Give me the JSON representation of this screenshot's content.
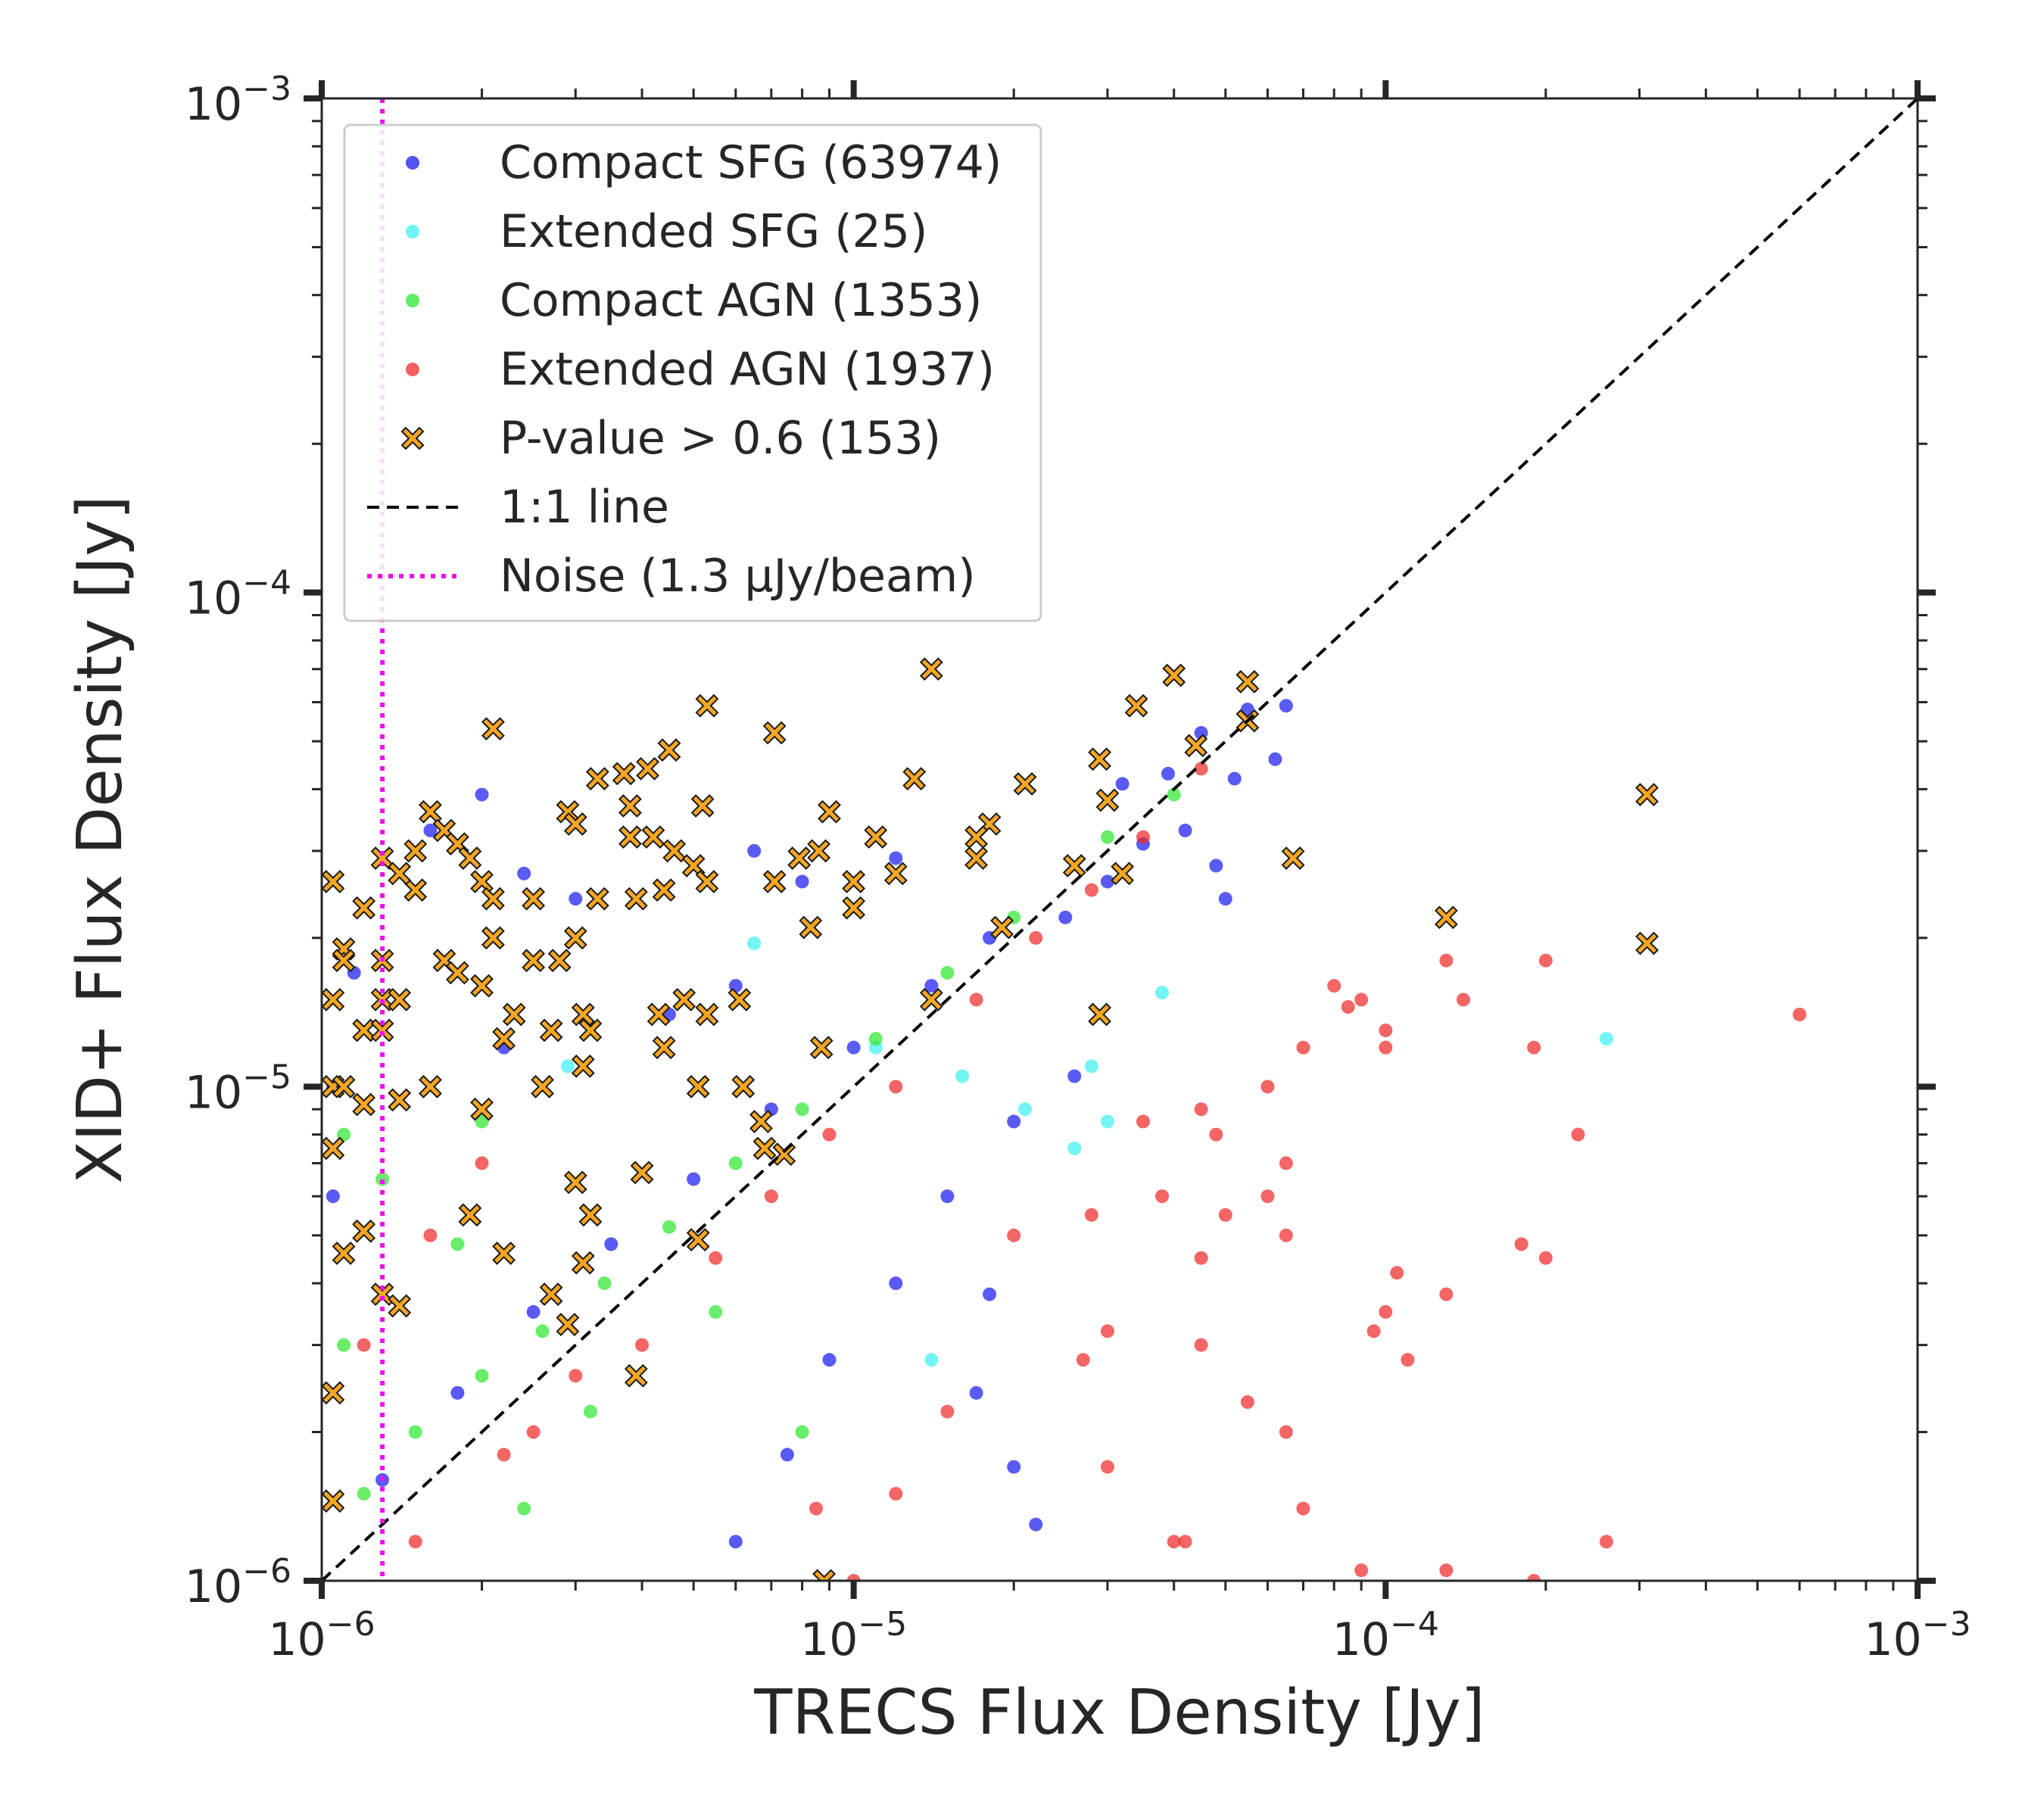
{
  "chart_data": {
    "type": "scatter",
    "xscale": "log",
    "yscale": "log",
    "xlabel": "TRECS Flux Density [Jy]",
    "ylabel": "XID+ Flux Density [Jy]",
    "xlim": [
      1e-06,
      0.001
    ],
    "ylim": [
      1e-06,
      0.001
    ],
    "x_tick_labels": [
      {
        "value": 1e-06,
        "base": "10",
        "exp": "−6"
      },
      {
        "value": 1e-05,
        "base": "10",
        "exp": "−5"
      },
      {
        "value": 0.0001,
        "base": "10",
        "exp": "−4"
      },
      {
        "value": 0.001,
        "base": "10",
        "exp": "−3"
      }
    ],
    "y_tick_labels": [
      {
        "value": 1e-06,
        "base": "10",
        "exp": "−6"
      },
      {
        "value": 1e-05,
        "base": "10",
        "exp": "−5"
      },
      {
        "value": 0.0001,
        "base": "10",
        "exp": "−4"
      },
      {
        "value": 0.001,
        "base": "10",
        "exp": "−3"
      }
    ],
    "legend_position": "top-left",
    "legend": [
      {
        "label": "Compact SFG (63974)",
        "marker": "dot",
        "color": "#1a1af0"
      },
      {
        "label": "Extended SFG (25)",
        "marker": "dot",
        "color": "#3ef0f0"
      },
      {
        "label": "Compact AGN (1353)",
        "marker": "dot",
        "color": "#2ee82e"
      },
      {
        "label": "Extended AGN (1937)",
        "marker": "dot",
        "color": "#f02a2a"
      },
      {
        "label": "P-value > 0.6 (153)",
        "marker": "x",
        "color": "#f5a623"
      },
      {
        "label": "1:1 line",
        "marker": "dashed",
        "color": "#000000"
      },
      {
        "label": "Noise (1.3 μJy/beam)",
        "marker": "dotted",
        "color": "#ee11ee"
      }
    ],
    "reference_lines": {
      "one_to_one": {
        "from": [
          1e-06,
          1e-06
        ],
        "to": [
          0.001,
          0.001
        ],
        "color": "#000000"
      },
      "noise": {
        "x": 1.3e-06,
        "color": "#ee11ee"
      }
    },
    "series": [
      {
        "name": "Compact SFG",
        "color": "#1a1af0",
        "note": "dense cloud from 1e-6 to ~7e-5 Jy along the 1:1 line, scatter above toward low TRECS flux",
        "points": [
          [
            4.5e-05,
            5.2e-05
          ],
          [
            5.5e-05,
            5.8e-05
          ],
          [
            6.5e-05,
            5.9e-05
          ],
          [
            6.2e-05,
            4.6e-05
          ],
          [
            5.2e-05,
            4.2e-05
          ],
          [
            4.2e-05,
            3.3e-05
          ],
          [
            3.5e-05,
            3.1e-05
          ],
          [
            3e-05,
            2.6e-05
          ],
          [
            2.5e-05,
            2.2e-05
          ],
          [
            5e-05,
            2.4e-05
          ],
          [
            4.8e-05,
            2.8e-05
          ],
          [
            2e-06,
            3.9e-05
          ],
          [
            1.6e-06,
            3.3e-05
          ],
          [
            2.4e-06,
            2.7e-05
          ],
          [
            3e-06,
            2.4e-05
          ],
          [
            6.5e-06,
            3e-05
          ],
          [
            8e-06,
            2.6e-05
          ],
          [
            1.2e-05,
            2.9e-05
          ],
          [
            1.8e-05,
            2e-05
          ],
          [
            1.4e-05,
            1.6e-05
          ],
          [
            1e-05,
            1.2e-05
          ],
          [
            7e-06,
            9e-06
          ],
          [
            5e-06,
            6.5e-06
          ],
          [
            3.5e-06,
            4.8e-06
          ],
          [
            2.5e-06,
            3.5e-06
          ],
          [
            1.8e-06,
            2.4e-06
          ],
          [
            1.3e-06,
            1.6e-06
          ],
          [
            2.2e-06,
            1.2e-05
          ],
          [
            4.5e-06,
            1.4e-05
          ],
          [
            6e-06,
            1.6e-05
          ],
          [
            1.5e-05,
            6e-06
          ],
          [
            1.2e-05,
            4e-06
          ],
          [
            9e-06,
            2.8e-06
          ],
          [
            7.5e-06,
            1.8e-06
          ],
          [
            6e-06,
            1.2e-06
          ],
          [
            1.8e-05,
            3.8e-06
          ],
          [
            2.2e-05,
            1.3e-06
          ],
          [
            1.7e-05,
            2.4e-06
          ],
          [
            2e-05,
            1.7e-06
          ],
          [
            2e-05,
            8.5e-06
          ],
          [
            2.6e-05,
            1.05e-05
          ],
          [
            1.05e-06,
            1e-05
          ],
          [
            1.05e-06,
            6e-06
          ],
          [
            1.15e-06,
            1.7e-05
          ],
          [
            3.2e-05,
            4.1e-05
          ],
          [
            3.9e-05,
            4.3e-05
          ]
        ]
      },
      {
        "name": "Extended SFG",
        "color": "#3ef0f0",
        "points": [
          [
            0.00026,
            1.25e-05
          ],
          [
            3.8e-05,
            1.55e-05
          ],
          [
            2.8e-05,
            1.1e-05
          ],
          [
            3e-05,
            8.5e-06
          ],
          [
            2.1e-05,
            9e-06
          ],
          [
            2.6e-05,
            7.5e-06
          ],
          [
            1.4e-05,
            2.8e-06
          ],
          [
            6.5e-06,
            1.95e-05
          ],
          [
            2.9e-06,
            1.1e-05
          ],
          [
            1.1e-05,
            1.2e-05
          ],
          [
            1.6e-05,
            1.05e-05
          ]
        ]
      },
      {
        "name": "Compact AGN",
        "color": "#2ee82e",
        "points": [
          [
            1.2e-06,
            1.5e-06
          ],
          [
            1.5e-06,
            2e-06
          ],
          [
            2e-06,
            2.6e-06
          ],
          [
            2.6e-06,
            3.2e-06
          ],
          [
            3.4e-06,
            4e-06
          ],
          [
            4.5e-06,
            5.2e-06
          ],
          [
            6e-06,
            7e-06
          ],
          [
            8e-06,
            9e-06
          ],
          [
            1.1e-05,
            1.25e-05
          ],
          [
            1.5e-05,
            1.7e-05
          ],
          [
            2e-05,
            2.2e-05
          ],
          [
            3e-05,
            3.2e-05
          ],
          [
            4e-05,
            3.9e-05
          ],
          [
            1.3e-06,
            6.5e-06
          ],
          [
            1.8e-06,
            4.8e-06
          ],
          [
            2.4e-06,
            1.4e-06
          ],
          [
            3.2e-06,
            2.2e-06
          ],
          [
            1.1e-06,
            3e-06
          ],
          [
            5.5e-06,
            3.5e-06
          ],
          [
            8e-06,
            2e-06
          ],
          [
            1.1e-06,
            8e-06
          ],
          [
            2e-06,
            8.5e-06
          ]
        ]
      },
      {
        "name": "Extended AGN",
        "color": "#f02a2a",
        "points": [
          [
            0.0006,
            1.4e-05
          ],
          [
            0.0002,
            1.8e-05
          ],
          [
            0.00014,
            1.5e-05
          ],
          [
            0.00013,
            1.8e-05
          ],
          [
            0.00019,
            1.2e-05
          ],
          [
            0.00023,
            8e-06
          ],
          [
            0.00018,
            4.8e-06
          ],
          [
            0.0002,
            4.5e-06
          ],
          [
            0.000105,
            4.2e-06
          ],
          [
            0.0001,
            3.5e-06
          ],
          [
            9.5e-05,
            3.2e-06
          ],
          [
            0.00011,
            2.8e-06
          ],
          [
            0.00013,
            3.8e-06
          ],
          [
            0.0001,
            1.2e-05
          ],
          [
            0.0001,
            1.3e-05
          ],
          [
            9e-05,
            1.5e-05
          ],
          [
            7e-05,
            1.2e-05
          ],
          [
            6e-05,
            1e-05
          ],
          [
            8e-05,
            1.6e-05
          ],
          [
            8.5e-05,
            1.45e-05
          ],
          [
            7e-05,
            1.4e-06
          ],
          [
            6.5e-05,
            2e-06
          ],
          [
            5.5e-05,
            2.3e-06
          ],
          [
            0.00026,
            1.2e-06
          ],
          [
            0.00019,
            1e-06
          ],
          [
            0.00013,
            1.05e-06
          ],
          [
            9e-05,
            1.05e-06
          ],
          [
            6.5e-05,
            5e-06
          ],
          [
            6e-05,
            6e-06
          ],
          [
            6.5e-05,
            7e-06
          ],
          [
            4.2e-05,
            1.2e-06
          ],
          [
            4e-05,
            1.2e-06
          ],
          [
            3e-05,
            1.7e-06
          ],
          [
            2.7e-05,
            2.8e-06
          ],
          [
            3e-05,
            3.2e-06
          ],
          [
            4.5e-05,
            3e-06
          ],
          [
            4.5e-05,
            4.5e-06
          ],
          [
            5e-05,
            5.5e-06
          ],
          [
            4.8e-05,
            8e-06
          ],
          [
            4.5e-05,
            9e-06
          ],
          [
            3.8e-05,
            6e-06
          ],
          [
            3.5e-05,
            8.5e-06
          ],
          [
            2.8e-05,
            5.5e-06
          ],
          [
            2e-05,
            5e-06
          ],
          [
            1.5e-05,
            2.2e-06
          ],
          [
            1.2e-05,
            1.5e-06
          ],
          [
            1e-05,
            1e-06
          ],
          [
            8.5e-06,
            1.4e-06
          ],
          [
            2.5e-06,
            2e-06
          ],
          [
            1.5e-06,
            1.2e-06
          ],
          [
            2.2e-06,
            1.8e-06
          ],
          [
            3e-06,
            2.6e-06
          ],
          [
            4e-06,
            3e-06
          ],
          [
            5.5e-06,
            4.5e-06
          ],
          [
            7e-06,
            6e-06
          ],
          [
            9e-06,
            8e-06
          ],
          [
            1.2e-05,
            1e-05
          ],
          [
            1.7e-05,
            1.5e-05
          ],
          [
            2.2e-05,
            2e-05
          ],
          [
            2.8e-05,
            2.5e-05
          ],
          [
            3.5e-05,
            3.2e-05
          ],
          [
            4.5e-05,
            4.4e-05
          ],
          [
            1.2e-06,
            3e-06
          ],
          [
            1.6e-06,
            5e-06
          ],
          [
            2e-06,
            7e-06
          ]
        ]
      },
      {
        "name": "P-value > 0.6",
        "color": "#f5a623",
        "points": [
          [
            0.00031,
            3.9e-05
          ],
          [
            0.00031,
            1.95e-05
          ],
          [
            0.00013,
            2.2e-05
          ],
          [
            6.7e-05,
            2.9e-05
          ],
          [
            1.4e-05,
            7e-05
          ],
          [
            4e-05,
            6.8e-05
          ],
          [
            5.5e-05,
            6.6e-05
          ],
          [
            5.5e-05,
            5.5e-05
          ],
          [
            3.4e-05,
            5.9e-05
          ],
          [
            4.4e-05,
            4.9e-05
          ],
          [
            2.9e-05,
            4.6e-05
          ],
          [
            2.1e-05,
            4.1e-05
          ],
          [
            1.3e-05,
            4.2e-05
          ],
          [
            3e-05,
            3.8e-05
          ],
          [
            5.3e-06,
            5.9e-05
          ],
          [
            7.1e-06,
            5.2e-05
          ],
          [
            2.1e-06,
            5.3e-05
          ],
          [
            4.5e-06,
            4.8e-05
          ],
          [
            4.1e-06,
            4.4e-05
          ],
          [
            3.7e-06,
            4.3e-05
          ],
          [
            3.3e-06,
            4.2e-05
          ],
          [
            5.2e-06,
            3.7e-05
          ],
          [
            1.6e-06,
            3.6e-05
          ],
          [
            2.9e-06,
            3.6e-05
          ],
          [
            3.8e-06,
            3.7e-05
          ],
          [
            9e-06,
            3.6e-05
          ],
          [
            3e-06,
            3.4e-05
          ],
          [
            1.8e-05,
            3.4e-05
          ],
          [
            1.7e-05,
            3.2e-05
          ],
          [
            1.1e-05,
            3.2e-05
          ],
          [
            8.6e-06,
            3e-05
          ],
          [
            1.7e-06,
            3.3e-05
          ],
          [
            1.8e-06,
            3.1e-05
          ],
          [
            3.8e-06,
            3.2e-05
          ],
          [
            4.2e-06,
            3.2e-05
          ],
          [
            7.9e-06,
            2.9e-05
          ],
          [
            1.5e-06,
            3e-05
          ],
          [
            1.3e-06,
            2.9e-05
          ],
          [
            1.9e-06,
            2.9e-05
          ],
          [
            4.6e-06,
            3e-05
          ],
          [
            5e-06,
            2.8e-05
          ],
          [
            1.7e-05,
            2.9e-05
          ],
          [
            1.2e-05,
            2.7e-05
          ],
          [
            2.6e-05,
            2.8e-05
          ],
          [
            3.2e-05,
            2.7e-05
          ],
          [
            1.05e-06,
            2.6e-05
          ],
          [
            1.5e-06,
            2.5e-05
          ],
          [
            1.4e-06,
            2.7e-05
          ],
          [
            1.2e-06,
            2.3e-05
          ],
          [
            2e-06,
            2.6e-05
          ],
          [
            2.1e-06,
            2.4e-05
          ],
          [
            3.3e-06,
            2.4e-05
          ],
          [
            2.5e-06,
            2.4e-05
          ],
          [
            3.9e-06,
            2.4e-05
          ],
          [
            4.4e-06,
            2.5e-05
          ],
          [
            5.3e-06,
            2.6e-05
          ],
          [
            7.1e-06,
            2.6e-05
          ],
          [
            1e-05,
            2.6e-05
          ],
          [
            1e-05,
            2.3e-05
          ],
          [
            8.3e-06,
            2.1e-05
          ],
          [
            1.9e-05,
            2.1e-05
          ],
          [
            1.1e-06,
            1.9e-05
          ],
          [
            1.3e-06,
            1.8e-05
          ],
          [
            1.1e-06,
            1.8e-05
          ],
          [
            1.7e-06,
            1.8e-05
          ],
          [
            2.1e-06,
            2e-05
          ],
          [
            2.5e-06,
            1.8e-05
          ],
          [
            2.8e-06,
            1.8e-05
          ],
          [
            3e-06,
            2e-05
          ],
          [
            2e-06,
            1.6e-05
          ],
          [
            1.3e-06,
            1.5e-05
          ],
          [
            1.4e-06,
            1.5e-05
          ],
          [
            1.05e-06,
            1.5e-05
          ],
          [
            1.8e-06,
            1.7e-05
          ],
          [
            4.8e-06,
            1.5e-05
          ],
          [
            6.1e-06,
            1.5e-05
          ],
          [
            4.3e-06,
            1.4e-05
          ],
          [
            5.3e-06,
            1.4e-05
          ],
          [
            2.3e-06,
            1.4e-05
          ],
          [
            3.1e-06,
            1.4e-05
          ],
          [
            1.4e-05,
            1.5e-05
          ],
          [
            1.2e-06,
            1.3e-05
          ],
          [
            1.3e-06,
            1.3e-05
          ],
          [
            2.7e-06,
            1.3e-05
          ],
          [
            3.2e-06,
            1.3e-05
          ],
          [
            2.2e-06,
            1.25e-05
          ],
          [
            4.4e-06,
            1.2e-05
          ],
          [
            8.7e-06,
            1.2e-05
          ],
          [
            2.9e-05,
            1.4e-05
          ],
          [
            1.05e-06,
            1e-05
          ],
          [
            1.1e-06,
            1e-05
          ],
          [
            1.6e-06,
            1e-05
          ],
          [
            2.6e-06,
            1e-05
          ],
          [
            3.1e-06,
            1.1e-05
          ],
          [
            5.1e-06,
            1e-05
          ],
          [
            6.2e-06,
            1e-05
          ],
          [
            1.2e-06,
            9.2e-06
          ],
          [
            1.4e-06,
            9.4e-06
          ],
          [
            2e-06,
            9e-06
          ],
          [
            6.7e-06,
            8.5e-06
          ],
          [
            6.8e-06,
            7.5e-06
          ],
          [
            7.4e-06,
            7.3e-06
          ],
          [
            1.05e-06,
            7.5e-06
          ],
          [
            4e-06,
            6.7e-06
          ],
          [
            3e-06,
            6.4e-06
          ],
          [
            1.9e-06,
            5.5e-06
          ],
          [
            3.2e-06,
            5.5e-06
          ],
          [
            1.2e-06,
            5.1e-06
          ],
          [
            1.1e-06,
            4.6e-06
          ],
          [
            2.2e-06,
            4.6e-06
          ],
          [
            5.1e-06,
            4.9e-06
          ],
          [
            3.1e-06,
            4.4e-06
          ],
          [
            1.3e-06,
            3.8e-06
          ],
          [
            1.4e-06,
            3.6e-06
          ],
          [
            2.7e-06,
            3.8e-06
          ],
          [
            2.9e-06,
            3.3e-06
          ],
          [
            3.9e-06,
            2.6e-06
          ],
          [
            1.05e-06,
            2.4e-06
          ],
          [
            1.05e-06,
            1.45e-06
          ],
          [
            8.8e-06,
            1e-06
          ]
        ]
      }
    ]
  }
}
